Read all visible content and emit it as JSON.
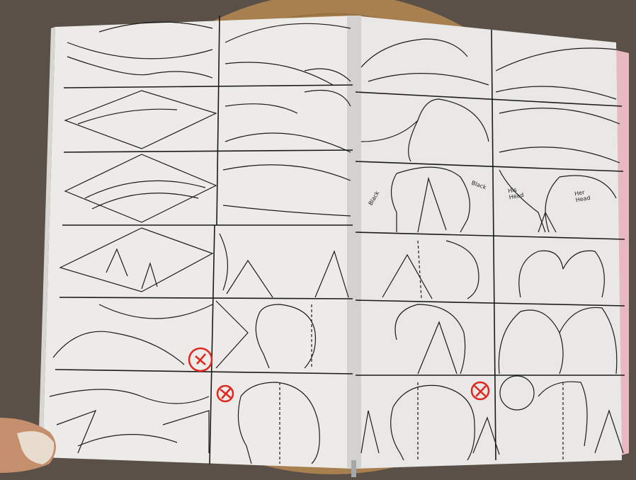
{
  "scene": {
    "subject": "open sketchbook with storyboard thumbnails",
    "colors": {
      "floor": "#5b5148",
      "table": "#a8804f",
      "table_dark": "#8a6438",
      "paper": "#ecebe8",
      "paper_shadow": "#cfcdc9",
      "ink": "#1b1b1b",
      "red_mark": "#e0261d",
      "cover_edge": "#e8b9c0",
      "skin": "#c58f6e"
    },
    "red_marks": 3,
    "handwritten_notes": [
      "Black",
      "Black",
      "His Head",
      "Her Head"
    ]
  }
}
